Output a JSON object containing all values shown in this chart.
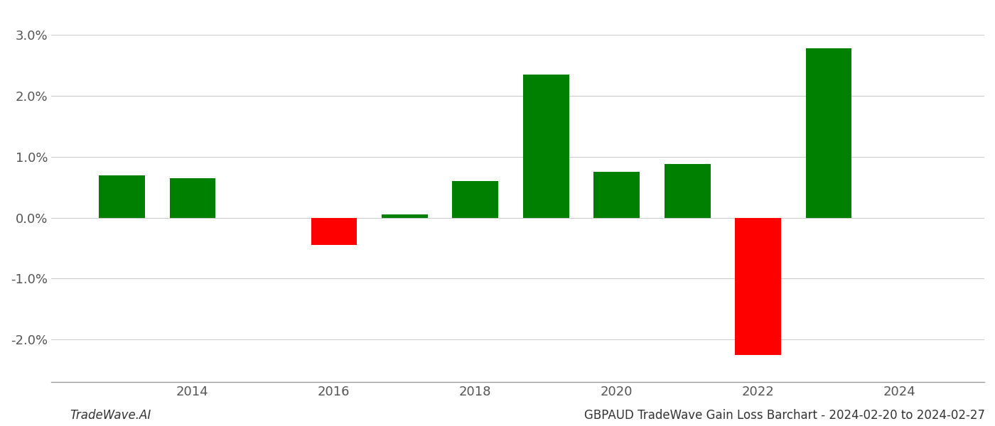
{
  "years": [
    2013,
    2014,
    2016,
    2017,
    2018,
    2019,
    2020,
    2021,
    2022,
    2023
  ],
  "values": [
    0.007,
    0.0065,
    -0.0045,
    0.0005,
    0.006,
    0.0235,
    0.0075,
    0.0088,
    -0.0225,
    0.0278
  ],
  "bar_colors": [
    "#008000",
    "#008000",
    "#FF0000",
    "#008000",
    "#008000",
    "#008000",
    "#008000",
    "#008000",
    "#FF0000",
    "#008000"
  ],
  "ylim": [
    -0.027,
    0.034
  ],
  "yticks": [
    -0.02,
    -0.01,
    0.0,
    0.01,
    0.02,
    0.03
  ],
  "xticks": [
    2014,
    2016,
    2018,
    2020,
    2022,
    2024
  ],
  "xlim": [
    2012.0,
    2025.2
  ],
  "title_right": "GBPAUD TradeWave Gain Loss Barchart - 2024-02-20 to 2024-02-27",
  "title_left": "TradeWave.AI",
  "background_color": "#ffffff",
  "grid_color": "#cccccc",
  "bar_width": 0.65,
  "tick_fontsize": 13,
  "title_fontsize": 12
}
